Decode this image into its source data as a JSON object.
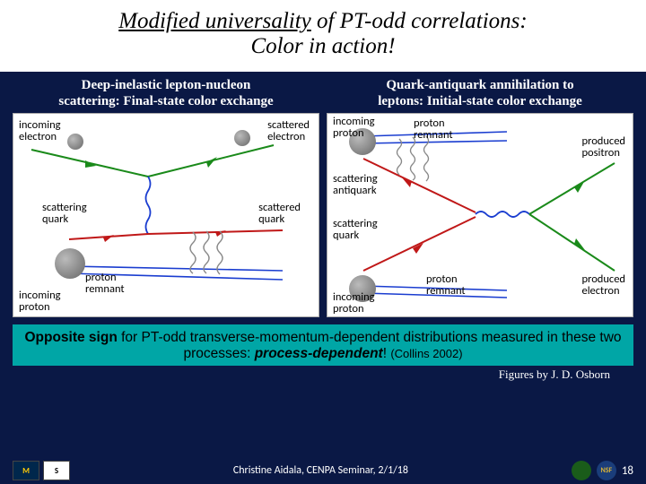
{
  "title": {
    "part1_underlined": "Modified universality",
    "part2": " of PT-odd correlations:",
    "line2": "Color in action!",
    "fontsize": 25,
    "color": "#000000",
    "bg": "#ffffff"
  },
  "page_bg": "#0a1845",
  "left": {
    "heading_l1": "Deep-inelastic lepton-nucleon",
    "heading_l2": "scattering: Final-state color exchange",
    "labels": {
      "incoming_electron": "incoming\nelectron",
      "scattered_electron": "scattered\nelectron",
      "scattering_quark": "scattering\nquark",
      "scattered_quark": "scattered\nquark",
      "proton_remnant": "proton\nremnant",
      "incoming_proton": "incoming\nproton"
    },
    "diagram": {
      "type": "feynman-dis",
      "electron_color": "#1a8a1a",
      "quark_color": "#c01818",
      "gluon_color": "#888888",
      "photon_color": "#1a3dd0",
      "blob_color": "#888888",
      "bg": "#ffffff"
    }
  },
  "right": {
    "heading_l1": "Quark-antiquark annihilation to",
    "heading_l2": "leptons: Initial-state color exchange",
    "labels": {
      "incoming_proton_top": "incoming\nproton",
      "proton_remnant_top": "proton\nremnant",
      "produced_positron": "produced\npositron",
      "scattering_antiquark": "scattering\nantiquark",
      "scattering_quark": "scattering\nquark",
      "proton_remnant_bot": "proton\nremnant",
      "incoming_proton_bot": "incoming\nproton",
      "produced_electron": "produced\nelectron"
    },
    "diagram": {
      "type": "feynman-drellyan",
      "electron_color": "#1a8a1a",
      "quark_color": "#c01818",
      "gluon_color": "#888888",
      "photon_color": "#1a3dd0",
      "blob_color": "#888888",
      "bg": "#ffffff"
    }
  },
  "banner": {
    "pre": "Opposite sign",
    "mid": " for PT-odd transverse-momentum-dependent distributions measured in these two processes: ",
    "emph": "process-dependent",
    "post": "!  ",
    "ref": "(Collins 2002)",
    "bg": "#00a6a6",
    "fontsize": 15.5
  },
  "fig_credit": "Figures by J. D. Osborn",
  "footer": {
    "center": "Christine Aidala, CENPA Seminar, 2/1/18",
    "page": "18",
    "logos": {
      "m": "M",
      "s": "S",
      "doe": "",
      "nsf": "NSF"
    }
  }
}
